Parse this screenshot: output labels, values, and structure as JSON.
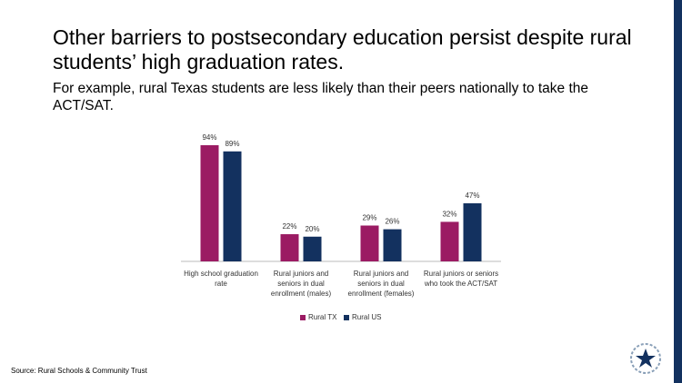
{
  "title": "Other barriers to postsecondary education persist despite rural students’ high graduation rates.",
  "subtitle": "For example, rural Texas students are less likely than their peers nationally to take the ACT/SAT.",
  "source": "Source: Rural Schools & Community Trust",
  "chart_data": {
    "type": "bar",
    "categories": [
      "High school graduation rate",
      "Rural juniors and seniors in dual enrollment (males)",
      "Rural juniors and seniors in dual enrollment (females)",
      "Rural juniors or seniors who took the ACT/SAT"
    ],
    "series": [
      {
        "name": "Rural TX",
        "color": "#9b1b63",
        "values": [
          94,
          22,
          29,
          32
        ],
        "value_labels": [
          "94%",
          "22%",
          "29%",
          "32%"
        ]
      },
      {
        "name": "Rural US",
        "color": "#13315f",
        "values": [
          89,
          20,
          26,
          47
        ],
        "value_labels": [
          "89%",
          "20%",
          "26%",
          "47%"
        ]
      }
    ]
  }
}
